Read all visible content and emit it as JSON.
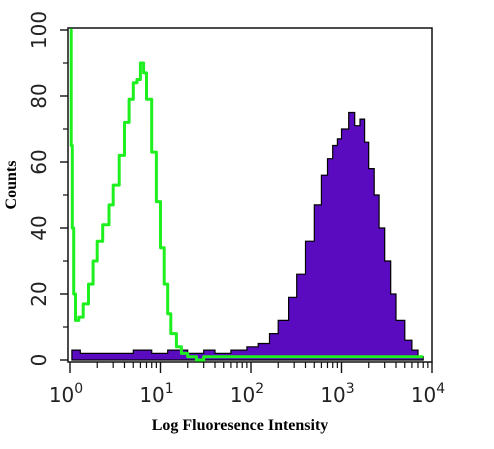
{
  "chart_data": {
    "type": "area",
    "xlabel": "Log Fluoresence Intensity",
    "ylabel": "Counts",
    "xscale": "log",
    "xlim": [
      1,
      10000
    ],
    "ylim": [
      0,
      100
    ],
    "x_tick_labels": [
      {
        "value": 1,
        "base": "10",
        "exp": "0"
      },
      {
        "value": 10,
        "base": "10",
        "exp": "1"
      },
      {
        "value": 100,
        "base": "10",
        "exp": "2"
      },
      {
        "value": 1000,
        "base": "10",
        "exp": "3"
      },
      {
        "value": 10000,
        "base": "10",
        "exp": "4"
      }
    ],
    "y_ticks": [
      0,
      20,
      40,
      60,
      80,
      100
    ],
    "grid": false,
    "series": [
      {
        "style": "filled",
        "color": "#5a0bbf",
        "x": [
          1.05,
          1.3,
          2,
          3,
          5,
          8,
          12,
          20,
          30,
          40,
          60,
          90,
          120,
          160,
          200,
          260,
          320,
          400,
          500,
          600,
          700,
          800,
          900,
          1000,
          1200,
          1400,
          1600,
          1800,
          2000,
          2300,
          2600,
          3000,
          3500,
          4000,
          5000,
          6000,
          7000,
          8000
        ],
        "values": [
          3,
          2,
          2,
          2,
          3,
          2,
          3,
          2,
          3,
          2,
          3,
          4,
          5,
          8,
          12,
          19,
          26,
          36,
          47,
          56,
          61,
          65,
          67,
          70,
          75,
          71,
          73,
          66,
          58,
          50,
          40,
          30,
          20,
          12,
          6,
          3,
          1,
          0
        ]
      },
      {
        "style": "line",
        "color": "#1eef1e",
        "x": [
          1,
          1.03,
          1.06,
          1.1,
          1.15,
          1.25,
          1.4,
          1.6,
          1.8,
          2,
          2.3,
          2.7,
          3,
          3.5,
          4,
          4.5,
          5,
          5.5,
          6,
          6.5,
          7,
          8,
          9,
          10,
          11,
          12,
          13,
          15,
          17,
          20,
          25,
          30,
          40,
          60,
          100,
          200,
          500,
          1000,
          2000,
          4000,
          8000
        ],
        "values": [
          100,
          65,
          40,
          20,
          12,
          13,
          17,
          23,
          30,
          36,
          41,
          47,
          53,
          62,
          72,
          79,
          84,
          85,
          90,
          87,
          79,
          63,
          48,
          34,
          23,
          14,
          8,
          4,
          2,
          1,
          0,
          1,
          1,
          1,
          1,
          1,
          1,
          1,
          1,
          1,
          1
        ]
      }
    ]
  }
}
